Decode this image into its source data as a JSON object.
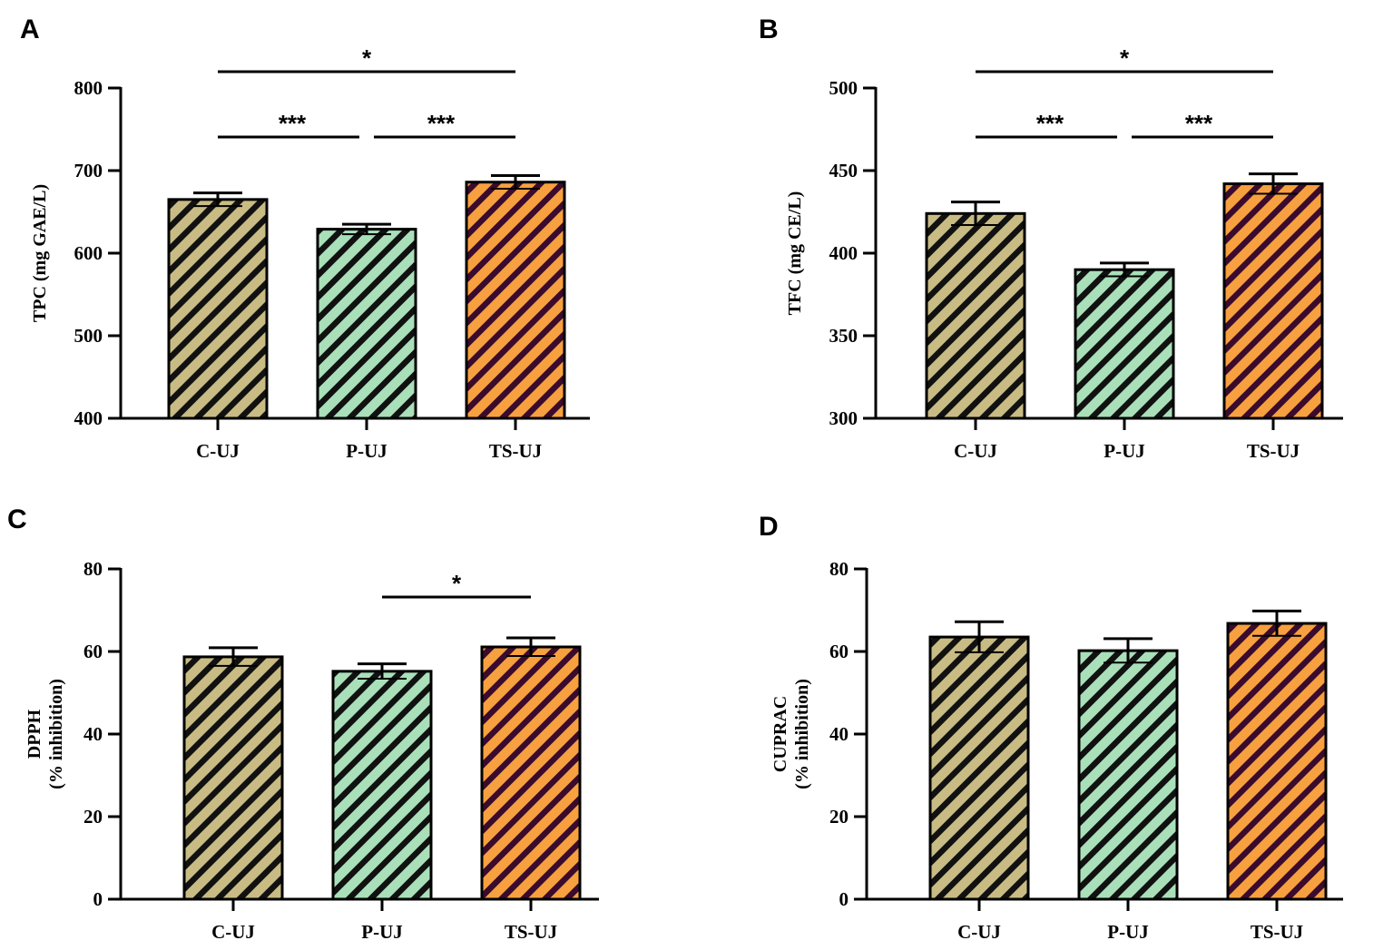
{
  "colors": {
    "C-UJ": {
      "fill": "#c8bc84",
      "stripe": "#111111"
    },
    "P-UJ": {
      "fill": "#a9e0b9",
      "stripe": "#111111"
    },
    "TS-UJ": {
      "fill": "#f7a040",
      "stripe": "#3a0b2c"
    }
  },
  "chart_data": [
    {
      "panel": "A",
      "type": "bar",
      "categories": [
        "C-UJ",
        "P-UJ",
        "TS-UJ"
      ],
      "values": [
        665,
        629,
        686
      ],
      "errors": [
        8,
        6,
        8
      ],
      "ylabel": "TPC (mg GAE/L)",
      "ylabel2": "",
      "ylim": [
        400,
        800
      ],
      "yticks": [
        400,
        500,
        600,
        700,
        800
      ],
      "significance": [
        {
          "from": 0,
          "to": 1,
          "label": "***",
          "level": 1
        },
        {
          "from": 1,
          "to": 2,
          "label": "***",
          "level": 1
        },
        {
          "from": 0,
          "to": 2,
          "label": "*",
          "level": 2
        }
      ]
    },
    {
      "panel": "B",
      "type": "bar",
      "categories": [
        "C-UJ",
        "P-UJ",
        "TS-UJ"
      ],
      "values": [
        424,
        390,
        442
      ],
      "errors": [
        7,
        4,
        6
      ],
      "ylabel": "TFC (mg CE/L)",
      "ylabel2": "",
      "ylim": [
        300,
        500
      ],
      "yticks": [
        300,
        350,
        400,
        450,
        500
      ],
      "significance": [
        {
          "from": 0,
          "to": 1,
          "label": "***",
          "level": 1
        },
        {
          "from": 1,
          "to": 2,
          "label": "***",
          "level": 1
        },
        {
          "from": 0,
          "to": 2,
          "label": "*",
          "level": 2
        }
      ]
    },
    {
      "panel": "C",
      "type": "bar",
      "categories": [
        "C-UJ",
        "P-UJ",
        "TS-UJ"
      ],
      "values": [
        58.7,
        55.2,
        61.1
      ],
      "errors": [
        2.2,
        1.8,
        2.2
      ],
      "ylabel": "DPPH",
      "ylabel2": "(% inhibition)",
      "ylim": [
        0,
        80
      ],
      "yticks": [
        0,
        20,
        40,
        60,
        80
      ],
      "significance": [
        {
          "from": 1,
          "to": 2,
          "label": "*",
          "level": 1
        }
      ]
    },
    {
      "panel": "D",
      "type": "bar",
      "categories": [
        "C-UJ",
        "P-UJ",
        "TS-UJ"
      ],
      "values": [
        63.5,
        60.2,
        66.8
      ],
      "errors": [
        3.7,
        2.9,
        3.0
      ],
      "ylabel": "CUPRAC",
      "ylabel2": "(% inhibition)",
      "ylim": [
        0,
        80
      ],
      "yticks": [
        0,
        20,
        40,
        60,
        80
      ],
      "significance": []
    }
  ]
}
